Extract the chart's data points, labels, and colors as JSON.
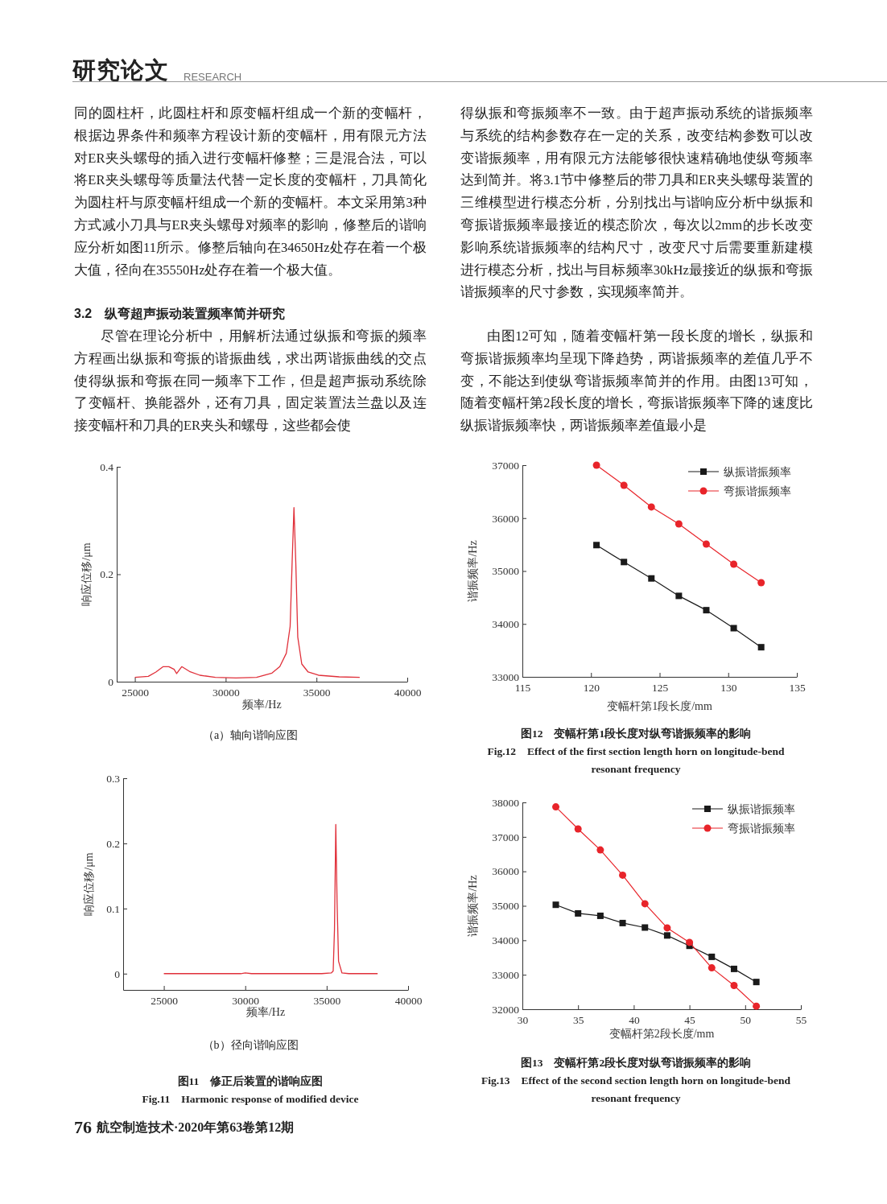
{
  "chart_data": [
    {
      "type": "line",
      "xlabel": "频率/Hz",
      "ylabel": "响应位移/μm",
      "xlim": [
        24000,
        40000
      ],
      "xticks": [
        25000,
        30000,
        35000,
        40000
      ],
      "ylim": [
        0,
        0.4
      ],
      "yticks": [
        0,
        0.2,
        0.4
      ],
      "annotations": [
        "研究论文",
        "RESEARCH",
        "同的圆柱杆，此圆柱杆和原变幅杆组成一个新的变幅杆，根据边界条件和频率方程设计新的变幅杆，用有限元方法对ER夹头螺母的插入进行变幅杆修整；三是混合法，可以将ER夹头螺母等质量法代替一定长度的变幅杆，刀具简化为圆柱杆与原变幅杆组成一个新的变幅杆。本文采用第3种方式减小刀具与ER夹头螺母对频率的影响，修整后的谐响应分析如图11所示。修整后轴向在34650Hz处存在着一个极大值，径向在35550Hz处存在着一个极大值。",
        "3.2　纵弯超声振动装置频率简并研究",
        "尽管在理论分析中，用解析法通过纵振和弯振的频率方程画出纵振和弯振的谐振曲线，求出两谐振曲线的交点使得纵振和弯振在同一频率下工作，但是超声振动系统除了变幅杆、换能器外，还有刀具，固定装置法兰盘以及连接变幅杆和刀具的ER夹头和螺母，这些都会使",
        "（a）轴向谐响应图"
      ],
      "series": [
        {
          "color": "#e0303a",
          "x": [
            25000,
            25740,
            26160,
            26560,
            26870,
            27160,
            27300,
            27580,
            28010,
            28580,
            29430,
            30570,
            31700,
            32550,
            32980,
            33340,
            33550,
            33660,
            33760,
            33860,
            33970,
            34190,
            34540,
            35110,
            36250,
            37380
          ],
          "values": [
            0.008,
            0.01,
            0.018,
            0.028,
            0.028,
            0.023,
            0.015,
            0.028,
            0.019,
            0.012,
            0.008,
            0.007,
            0.008,
            0.016,
            0.028,
            0.053,
            0.103,
            0.223,
            0.324,
            0.223,
            0.083,
            0.033,
            0.018,
            0.012,
            0.009,
            0.008
          ]
        }
      ]
    },
    {
      "type": "line",
      "xlabel": "变幅杆第1段长度/mm",
      "ylabel": "谐振频率/Hz",
      "xlim": [
        115,
        135
      ],
      "xticks": [
        115,
        120,
        125,
        130,
        135
      ],
      "ylim": [
        33000,
        37000
      ],
      "yticks": [
        33000,
        34000,
        35000,
        36000,
        37000
      ],
      "legend": "top right",
      "annotations": [
        "得纵振和弯振频率不一致。由于超声振动系统的谐振频率与系统的结构参数存在一定的关系，改变结构参数可以改变谐振频率，用有限元方法能够很快速精确地使纵弯频率达到简并。将3.1节中修整后的带刀具和ER夹头螺母装置的三维模型进行模态分析，分别找出与谐响应分析中纵振和弯振谐振频率最接近的模态阶次，每次以2mm的步长改变影响系统谐振频率的结构尺寸，改变尺寸后需要重新建模进行模态分析，找出与目标频率30kHz最接近的纵振和弯振谐振频率的尺寸参数，实现频率简并。",
        "由图12可知，随着变幅杆第一段长度的增长，纵振和弯振谐振频率均呈现下降趋势，两谐振频率的差值几乎不变，不能达到使纵弯谐振频率简并的作用。由图13可知，随着变幅杆第2段长度的增长，弯振谐振频率下降的速度比纵振谐振频率快，两谐振频率差值最小是",
        "图12　变幅杆第1段长度对纵弯谐振频率的影响",
        "Fig.12　Effect of the first section length horn on longitude-bend resonant frequency"
      ],
      "x": [
        120.4,
        122.4,
        124.4,
        126.4,
        128.4,
        130.4,
        132.4
      ],
      "series": [
        {
          "name": "纵振谐振频率",
          "color": "#1a1a1a",
          "marker": "square",
          "values": [
            35490,
            35170,
            34860,
            34530,
            34260,
            33920,
            33560
          ]
        },
        {
          "name": "弯振谐振频率",
          "color": "#e8242a",
          "marker": "circle",
          "values": [
            37000,
            36620,
            36210,
            35890,
            35510,
            35130,
            34780
          ]
        }
      ]
    },
    {
      "type": "line",
      "xlabel": "频率/Hz",
      "ylabel": "响应位移/μm",
      "xlim": [
        22500,
        40000
      ],
      "xticks": [
        25000,
        30000,
        35000,
        40000
      ],
      "ylim": [
        -0.025,
        0.3
      ],
      "yticks": [
        0,
        0.1,
        0.2,
        0.3
      ],
      "annotations": [
        "（b）径向谐响应图",
        "图11　修正后装置的谐响应图",
        "Fig.11　Harmonic response of modified device",
        "76",
        "航空制造技术·2020年第63卷第12期"
      ],
      "series": [
        {
          "color": "#e0303a",
          "x": [
            25000,
            27570,
            29720,
            30000,
            30380,
            34700,
            35280,
            35400,
            35480,
            35560,
            35640,
            35730,
            35940,
            36350,
            38130
          ],
          "values": [
            0,
            0,
            0,
            0.001,
            0,
            0,
            0.001,
            0.004,
            0.068,
            0.229,
            0.109,
            0.019,
            0.001,
            0,
            0
          ]
        }
      ]
    },
    {
      "type": "line",
      "xlabel": "变幅杆第2段长度/mm",
      "ylabel": "谐振频率/Hz",
      "xlim": [
        30,
        55
      ],
      "xticks": [
        30,
        35,
        40,
        45,
        50,
        55
      ],
      "ylim": [
        32000,
        38000
      ],
      "yticks": [
        32000,
        33000,
        34000,
        35000,
        36000,
        37000,
        38000
      ],
      "legend": "top right",
      "annotations": [
        "图13　变幅杆第2段长度对纵弯谐振频率的影响",
        "Fig.13　Effect of the second section length horn on longitude-bend resonant frequency"
      ],
      "x": [
        33,
        35,
        37,
        39,
        41,
        43,
        45,
        47,
        49,
        51
      ],
      "series": [
        {
          "name": "纵振谐振频率",
          "color": "#1a1a1a",
          "marker": "square",
          "values": [
            35030,
            34780,
            34710,
            34500,
            34370,
            34140,
            33840,
            33520,
            33170,
            32790
          ]
        },
        {
          "name": "弯振谐振频率",
          "color": "#e8242a",
          "marker": "circle",
          "values": [
            37870,
            37230,
            36620,
            35890,
            35060,
            34360,
            33940,
            33200,
            32690,
            32090
          ]
        }
      ]
    }
  ]
}
